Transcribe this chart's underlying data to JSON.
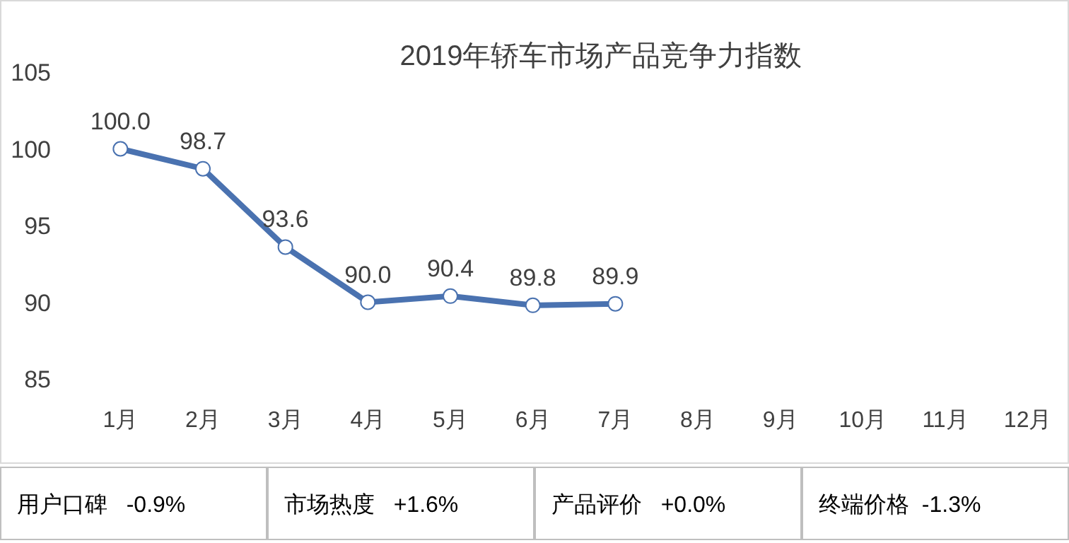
{
  "chart_data": {
    "type": "line",
    "title": "2019年轿车市场产品竞争力指数",
    "categories": [
      "1月",
      "2月",
      "3月",
      "4月",
      "5月",
      "6月",
      "7月",
      "8月",
      "9月",
      "10月",
      "11月",
      "12月"
    ],
    "series": [
      {
        "color": "#4a72b0",
        "values": [
          100.0,
          98.7,
          93.6,
          90.0,
          90.4,
          89.8,
          89.9,
          null,
          null,
          null,
          null,
          null
        ],
        "value_labels": [
          "100.0",
          "98.7",
          "93.6",
          "90.0",
          "90.4",
          "89.8",
          "89.9",
          null,
          null,
          null,
          null,
          null
        ]
      }
    ],
    "ylim": [
      85,
      105
    ],
    "yticks": [
      85,
      90,
      95,
      100,
      105
    ],
    "grid": false,
    "marker": "circle",
    "line_style": "solid",
    "annotations": [
      "用户口碑   -0.9%",
      "市场热度   +1.6%",
      "产品评价   +0.0%",
      "终端价格  -1.3%"
    ]
  }
}
